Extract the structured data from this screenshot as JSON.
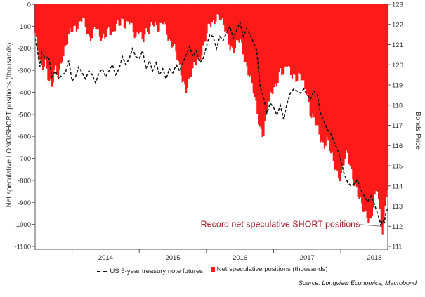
{
  "chart_data": {
    "type": "bar+line",
    "title": "",
    "left_axis": {
      "label": "Net speculative LONG/SHORT positions (thousands)",
      "ylim": [
        -1100,
        0
      ],
      "ticks": [
        0,
        -100,
        -200,
        -300,
        -400,
        -500,
        -600,
        -700,
        -800,
        -900,
        -1000,
        -1100
      ]
    },
    "right_axis": {
      "label": "Bonds Price",
      "ylim": [
        111,
        123
      ],
      "ticks": [
        111,
        112,
        113,
        114,
        115,
        116,
        117,
        118,
        119,
        120,
        121,
        122,
        123
      ]
    },
    "x_axis": {
      "range": [
        2013.45,
        2018.7
      ],
      "year_labels": [
        "2014",
        "2015",
        "2016",
        "2017",
        "2018"
      ]
    },
    "series": [
      {
        "name": "US 5-year treasury note futures",
        "kind": "line",
        "style": "dashed",
        "color": "#111111",
        "axis": "right",
        "points": [
          [
            2013.45,
            121.3
          ],
          [
            2013.48,
            120.8
          ],
          [
            2013.52,
            119.9
          ],
          [
            2013.55,
            120.6
          ],
          [
            2013.6,
            120.3
          ],
          [
            2013.65,
            120.4
          ],
          [
            2013.7,
            119.4
          ],
          [
            2013.75,
            119.7
          ],
          [
            2013.8,
            119.3
          ],
          [
            2013.85,
            119.5
          ],
          [
            2013.9,
            119.6
          ],
          [
            2013.95,
            120.2
          ],
          [
            2014.0,
            119.2
          ],
          [
            2014.05,
            119.4
          ],
          [
            2014.1,
            119.9
          ],
          [
            2014.15,
            119.6
          ],
          [
            2014.2,
            119.3
          ],
          [
            2014.25,
            119.7
          ],
          [
            2014.3,
            119.5
          ],
          [
            2014.35,
            119.1
          ],
          [
            2014.4,
            119.6
          ],
          [
            2014.45,
            119.8
          ],
          [
            2014.5,
            119.4
          ],
          [
            2014.55,
            119.7
          ],
          [
            2014.6,
            120.0
          ],
          [
            2014.65,
            119.5
          ],
          [
            2014.7,
            119.8
          ],
          [
            2014.75,
            120.4
          ],
          [
            2014.8,
            120.0
          ],
          [
            2014.85,
            120.3
          ],
          [
            2014.9,
            120.8
          ],
          [
            2014.95,
            120.4
          ],
          [
            2015.0,
            120.3
          ],
          [
            2015.05,
            120.7
          ],
          [
            2015.1,
            119.8
          ],
          [
            2015.15,
            120.2
          ],
          [
            2015.2,
            119.7
          ],
          [
            2015.25,
            120.1
          ],
          [
            2015.3,
            119.5
          ],
          [
            2015.35,
            119.8
          ],
          [
            2015.4,
            119.3
          ],
          [
            2015.45,
            119.8
          ],
          [
            2015.5,
            119.6
          ],
          [
            2015.55,
            120.0
          ],
          [
            2015.6,
            119.7
          ],
          [
            2015.65,
            120.1
          ],
          [
            2015.7,
            120.5
          ],
          [
            2015.75,
            120.9
          ],
          [
            2015.8,
            120.4
          ],
          [
            2015.85,
            120.7
          ],
          [
            2015.9,
            120.1
          ],
          [
            2015.95,
            120.3
          ],
          [
            2016.0,
            120.9
          ],
          [
            2016.05,
            121.5
          ],
          [
            2016.1,
            121.4
          ],
          [
            2016.15,
            120.8
          ],
          [
            2016.2,
            121.4
          ],
          [
            2016.25,
            121.2
          ],
          [
            2016.3,
            121.6
          ],
          [
            2016.35,
            121.9
          ],
          [
            2016.4,
            121.3
          ],
          [
            2016.45,
            121.7
          ],
          [
            2016.5,
            122.1
          ],
          [
            2016.55,
            121.4
          ],
          [
            2016.6,
            121.8
          ],
          [
            2016.65,
            121.5
          ],
          [
            2016.7,
            121.1
          ],
          [
            2016.75,
            120.7
          ],
          [
            2016.8,
            118.9
          ],
          [
            2016.85,
            118.4
          ],
          [
            2016.9,
            117.6
          ],
          [
            2016.95,
            118.1
          ],
          [
            2017.0,
            117.9
          ],
          [
            2017.05,
            117.5
          ],
          [
            2017.1,
            118.0
          ],
          [
            2017.15,
            117.3
          ],
          [
            2017.2,
            118.1
          ],
          [
            2017.25,
            118.6
          ],
          [
            2017.3,
            118.8
          ],
          [
            2017.35,
            118.7
          ],
          [
            2017.4,
            118.6
          ],
          [
            2017.45,
            118.8
          ],
          [
            2017.5,
            118.5
          ],
          [
            2017.55,
            118.3
          ],
          [
            2017.6,
            118.7
          ],
          [
            2017.65,
            118.5
          ],
          [
            2017.7,
            117.6
          ],
          [
            2017.75,
            117.2
          ],
          [
            2017.8,
            116.8
          ],
          [
            2017.85,
            116.6
          ],
          [
            2017.9,
            116.2
          ],
          [
            2017.95,
            115.8
          ],
          [
            2018.0,
            115.3
          ],
          [
            2018.05,
            114.6
          ],
          [
            2018.1,
            114.2
          ],
          [
            2018.15,
            114.0
          ],
          [
            2018.2,
            114.1
          ],
          [
            2018.25,
            114.3
          ],
          [
            2018.3,
            113.8
          ],
          [
            2018.35,
            113.5
          ],
          [
            2018.4,
            113.2
          ],
          [
            2018.45,
            113.5
          ],
          [
            2018.5,
            113.1
          ],
          [
            2018.55,
            112.6
          ],
          [
            2018.58,
            112.3
          ],
          [
            2018.6,
            112.0
          ],
          [
            2018.62,
            112.3
          ],
          [
            2018.65,
            112.2
          ],
          [
            2018.67,
            112.6
          ],
          [
            2018.7,
            112.9
          ]
        ]
      },
      {
        "name": "Net speculative positions (thousands)",
        "kind": "bar",
        "color": "#ff1a1a",
        "axis": "left",
        "points": [
          [
            2013.45,
            -130
          ],
          [
            2013.5,
            -240
          ],
          [
            2013.55,
            -300
          ],
          [
            2013.6,
            -250
          ],
          [
            2013.65,
            -330
          ],
          [
            2013.7,
            -380
          ],
          [
            2013.75,
            -300
          ],
          [
            2013.8,
            -330
          ],
          [
            2013.85,
            -240
          ],
          [
            2013.9,
            -200
          ],
          [
            2013.95,
            -150
          ],
          [
            2014.0,
            -120
          ],
          [
            2014.05,
            -100
          ],
          [
            2014.1,
            -90
          ],
          [
            2014.15,
            -60
          ],
          [
            2014.2,
            -110
          ],
          [
            2014.25,
            -160
          ],
          [
            2014.3,
            -130
          ],
          [
            2014.35,
            -90
          ],
          [
            2014.4,
            -150
          ],
          [
            2014.45,
            -170
          ],
          [
            2014.5,
            -130
          ],
          [
            2014.55,
            -100
          ],
          [
            2014.6,
            -150
          ],
          [
            2014.65,
            -110
          ],
          [
            2014.7,
            -90
          ],
          [
            2014.75,
            -60
          ],
          [
            2014.8,
            -100
          ],
          [
            2014.85,
            -80
          ],
          [
            2014.9,
            -120
          ],
          [
            2014.95,
            -150
          ],
          [
            2015.0,
            -100
          ],
          [
            2015.05,
            -170
          ],
          [
            2015.1,
            -140
          ],
          [
            2015.15,
            -120
          ],
          [
            2015.2,
            -70
          ],
          [
            2015.25,
            -90
          ],
          [
            2015.3,
            -130
          ],
          [
            2015.35,
            -80
          ],
          [
            2015.4,
            -110
          ],
          [
            2015.45,
            -160
          ],
          [
            2015.5,
            -180
          ],
          [
            2015.55,
            -230
          ],
          [
            2015.6,
            -290
          ],
          [
            2015.65,
            -340
          ],
          [
            2015.7,
            -380
          ],
          [
            2015.75,
            -350
          ],
          [
            2015.8,
            -300
          ],
          [
            2015.85,
            -260
          ],
          [
            2015.9,
            -240
          ],
          [
            2015.95,
            -200
          ],
          [
            2016.0,
            -150
          ],
          [
            2016.05,
            -90
          ],
          [
            2016.1,
            -80
          ],
          [
            2016.15,
            -50
          ],
          [
            2016.2,
            -60
          ],
          [
            2016.25,
            -100
          ],
          [
            2016.3,
            -130
          ],
          [
            2016.35,
            -180
          ],
          [
            2016.4,
            -210
          ],
          [
            2016.45,
            -190
          ],
          [
            2016.5,
            -160
          ],
          [
            2016.55,
            -220
          ],
          [
            2016.6,
            -280
          ],
          [
            2016.65,
            -330
          ],
          [
            2016.7,
            -400
          ],
          [
            2016.75,
            -480
          ],
          [
            2016.8,
            -560
          ],
          [
            2016.85,
            -590
          ],
          [
            2016.9,
            -500
          ],
          [
            2016.95,
            -420
          ],
          [
            2017.0,
            -380
          ],
          [
            2017.05,
            -350
          ],
          [
            2017.1,
            -300
          ],
          [
            2017.15,
            -330
          ],
          [
            2017.2,
            -270
          ],
          [
            2017.25,
            -300
          ],
          [
            2017.3,
            -320
          ],
          [
            2017.35,
            -350
          ],
          [
            2017.4,
            -330
          ],
          [
            2017.45,
            -360
          ],
          [
            2017.5,
            -390
          ],
          [
            2017.55,
            -500
          ],
          [
            2017.6,
            -530
          ],
          [
            2017.65,
            -560
          ],
          [
            2017.7,
            -600
          ],
          [
            2017.75,
            -640
          ],
          [
            2017.8,
            -620
          ],
          [
            2017.85,
            -680
          ],
          [
            2017.9,
            -720
          ],
          [
            2017.95,
            -760
          ],
          [
            2018.0,
            -790
          ],
          [
            2018.05,
            -720
          ],
          [
            2018.1,
            -680
          ],
          [
            2018.15,
            -740
          ],
          [
            2018.2,
            -800
          ],
          [
            2018.25,
            -860
          ],
          [
            2018.3,
            -910
          ],
          [
            2018.35,
            -940
          ],
          [
            2018.4,
            -960
          ],
          [
            2018.45,
            -980
          ],
          [
            2018.5,
            -900
          ],
          [
            2018.55,
            -840
          ],
          [
            2018.58,
            -930
          ],
          [
            2018.6,
            -1000
          ],
          [
            2018.62,
            -1020
          ],
          [
            2018.65,
            -980
          ],
          [
            2018.67,
            -880
          ],
          [
            2018.7,
            -830
          ]
        ]
      }
    ],
    "annotations": [
      {
        "text": "Record net speculative SHORT positions",
        "color": "#a31f2a",
        "x": 2017.1,
        "left_y": -1000,
        "pointer_x": 2018.6,
        "pointer_right_y": 112.0
      }
    ],
    "source": "Source: Longview Economics, Macrobond",
    "grid": false,
    "legend": "bottom"
  }
}
